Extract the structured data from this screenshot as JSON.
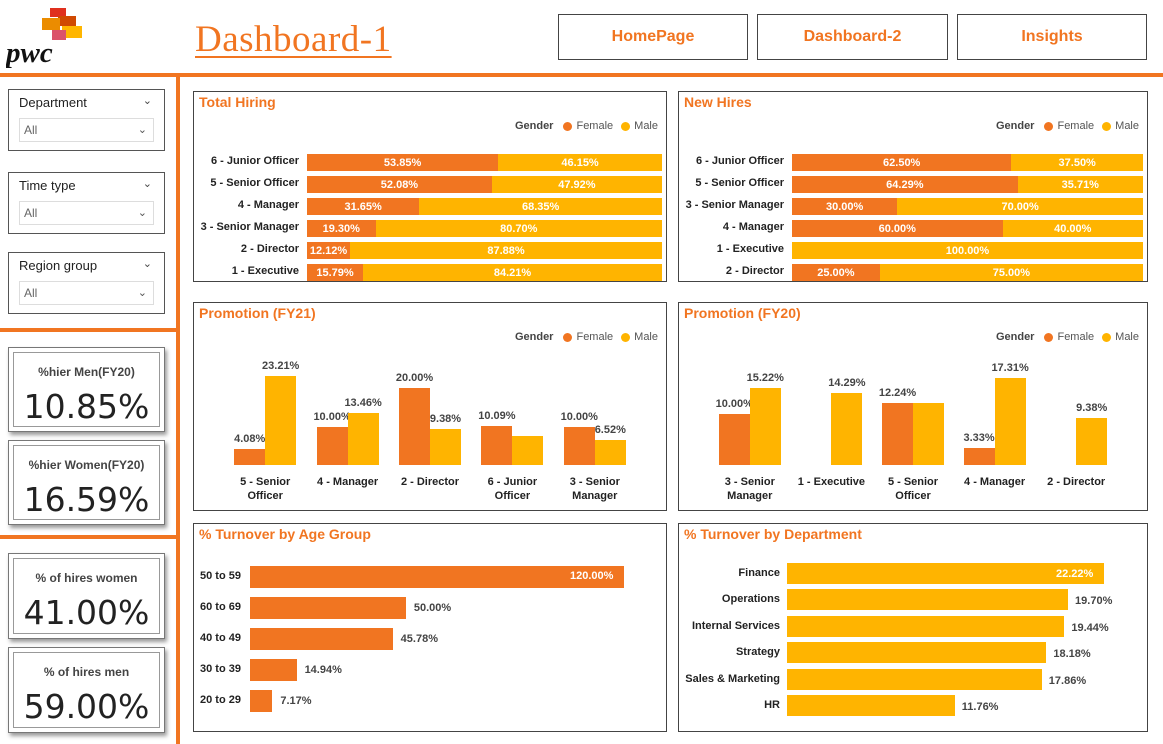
{
  "header": {
    "logo_text": "pwc",
    "title": "Dashboard-1",
    "nav": [
      {
        "label": "HomePage"
      },
      {
        "label": "Dashboard-2"
      },
      {
        "label": "Insights"
      }
    ]
  },
  "colors": {
    "accent": "#F17521",
    "female": "#F17521",
    "male": "#FFB400"
  },
  "filters": [
    {
      "label": "Department",
      "value": "All"
    },
    {
      "label": "Time type",
      "value": "All"
    },
    {
      "label": "Region group",
      "value": "All"
    }
  ],
  "kpis": [
    {
      "label": "%hier Men(FY20)",
      "value": "10.85%"
    },
    {
      "label": "%hier Women(FY20)",
      "value": "16.59%"
    },
    {
      "label": "% of hires women",
      "value": "41.00%"
    },
    {
      "label": "% of hires men",
      "value": "59.00%"
    }
  ],
  "legend": {
    "title": "Gender",
    "female": "Female",
    "male": "Male"
  },
  "chart_data": [
    {
      "title": "Total Hiring",
      "type": "bar",
      "orientation": "horizontal",
      "stacked": "100%",
      "categories": [
        "6 - Junior Officer",
        "5 - Senior Officer",
        "4 - Manager",
        "3 - Senior Manager",
        "2 - Director",
        "1 - Executive"
      ],
      "series": [
        {
          "name": "Female",
          "values": [
            53.85,
            52.08,
            31.65,
            19.3,
            12.12,
            15.79
          ],
          "labels": [
            "53.85%",
            "52.08%",
            "31.65%",
            "19.30%",
            "12.12%",
            "15.79%"
          ]
        },
        {
          "name": "Male",
          "values": [
            46.15,
            47.92,
            68.35,
            80.7,
            87.88,
            84.21
          ],
          "labels": [
            "46.15%",
            "47.92%",
            "68.35%",
            "80.70%",
            "87.88%",
            "84.21%"
          ]
        }
      ]
    },
    {
      "title": "New Hires",
      "type": "bar",
      "orientation": "horizontal",
      "stacked": "100%",
      "categories": [
        "6 - Junior Officer",
        "5 - Senior Officer",
        "3 - Senior Manager",
        "4 - Manager",
        "1 - Executive",
        "2 - Director"
      ],
      "series": [
        {
          "name": "Female",
          "values": [
            62.5,
            64.29,
            30.0,
            60.0,
            0,
            25.0
          ],
          "labels": [
            "62.50%",
            "64.29%",
            "30.00%",
            "60.00%",
            "",
            "25.00%"
          ]
        },
        {
          "name": "Male",
          "values": [
            37.5,
            35.71,
            70.0,
            40.0,
            100.0,
            75.0
          ],
          "labels": [
            "37.50%",
            "35.71%",
            "70.00%",
            "40.00%",
            "100.00%",
            "75.00%"
          ]
        }
      ]
    },
    {
      "title": "Promotion (FY21)",
      "type": "bar",
      "orientation": "vertical",
      "categories": [
        "5 - Senior Officer",
        "4 - Manager",
        "2 - Director",
        "6 - Junior Officer",
        "3 - Senior Manager"
      ],
      "series": [
        {
          "name": "Female",
          "values": [
            4.08,
            10.0,
            20.0,
            10.09,
            10.0
          ],
          "labels": [
            "4.08%",
            "10.00%",
            "20.00%",
            "10.09%",
            "10.00%"
          ]
        },
        {
          "name": "Male",
          "values": [
            23.21,
            13.46,
            9.38,
            7.5,
            6.52
          ],
          "labels": [
            "23.21%",
            "13.46%",
            "9.38%",
            "",
            "6.52%"
          ]
        }
      ],
      "ylim": [
        0,
        25
      ]
    },
    {
      "title": "Promotion (FY20)",
      "type": "bar",
      "orientation": "vertical",
      "categories": [
        "3 - Senior Manager",
        "1 - Executive",
        "5 - Senior Officer",
        "4 - Manager",
        "2 - Director"
      ],
      "series": [
        {
          "name": "Female",
          "values": [
            10.0,
            0,
            12.24,
            3.33,
            0
          ],
          "labels": [
            "10.00%",
            "",
            "12.24%",
            "3.33%",
            ""
          ]
        },
        {
          "name": "Male",
          "values": [
            15.22,
            14.29,
            12.24,
            17.31,
            9.38
          ],
          "labels": [
            "15.22%",
            "14.29%",
            "",
            "17.31%",
            "9.38%"
          ]
        }
      ],
      "ylim": [
        0,
        19
      ]
    },
    {
      "title": "% Turnover by Age Group",
      "type": "bar",
      "orientation": "horizontal",
      "categories": [
        "50 to 59",
        "60 to 69",
        "40 to 49",
        "30 to 39",
        "20 to 29"
      ],
      "values": [
        120.0,
        50.0,
        45.78,
        14.94,
        7.17
      ],
      "labels": [
        "120.00%",
        "50.00%",
        "45.78%",
        "14.94%",
        "7.17%"
      ],
      "color": "#F17521",
      "xlim": [
        0,
        120
      ]
    },
    {
      "title": "% Turnover by Department",
      "type": "bar",
      "orientation": "horizontal",
      "categories": [
        "Finance",
        "Operations",
        "Internal Services",
        "Strategy",
        "Sales & Marketing",
        "HR"
      ],
      "values": [
        22.22,
        19.7,
        19.44,
        18.18,
        17.86,
        11.76
      ],
      "labels": [
        "22.22%",
        "19.70%",
        "19.44%",
        "18.18%",
        "17.86%",
        "11.76%"
      ],
      "color": "#FFB400",
      "xlim": [
        0,
        22.22
      ]
    }
  ]
}
